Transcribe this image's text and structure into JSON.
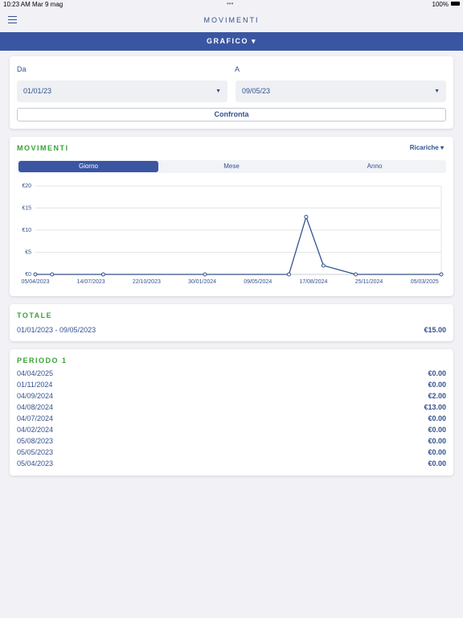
{
  "status_bar": {
    "time": "10:23 AM",
    "date": "Mar 9 mag",
    "battery": "100%"
  },
  "header": {
    "title": "MOVIMENTI",
    "view_selector": "GRAFICO"
  },
  "filter": {
    "from_label": "Da",
    "from_value": "01/01/23",
    "to_label": "A",
    "to_value": "09/05/23",
    "button": "Confronta"
  },
  "chart_card": {
    "title": "MOVIMENTI",
    "dropdown": "Ricariche",
    "tabs": [
      "Giorno",
      "Mese",
      "Anno"
    ]
  },
  "chart_data": {
    "type": "line",
    "color": "#33518f",
    "grid": true,
    "x": [
      "05/04/2023",
      "05/05/2023",
      "05/08/2023",
      "04/02/2024",
      "04/07/2024",
      "04/08/2024",
      "04/09/2024",
      "01/11/2024",
      "04/04/2025"
    ],
    "values": [
      0,
      0,
      0,
      0,
      0,
      13,
      2,
      0,
      0
    ],
    "xlim": [
      "05/04/2023",
      "04/04/2025"
    ],
    "xticks": [
      "05/04/2023",
      "14/07/2023",
      "22/10/2023",
      "30/01/2024",
      "09/05/2024",
      "17/08/2024",
      "25/11/2024",
      "05/03/2025"
    ],
    "ylim": [
      0,
      20
    ],
    "yticks": [
      {
        "value": 0,
        "label": "€0"
      },
      {
        "value": 5,
        "label": "€5"
      },
      {
        "value": 10,
        "label": "€10"
      },
      {
        "value": 15,
        "label": "€15"
      },
      {
        "value": 20,
        "label": "€20"
      }
    ]
  },
  "total": {
    "title": "TOTALE",
    "period": "01/01/2023 - 09/05/2023",
    "amount": "€15.00"
  },
  "period_1": {
    "title": "PERIODO 1",
    "rows": [
      [
        "04/04/2025",
        "€0.00"
      ],
      [
        "01/11/2024",
        "€0.00"
      ],
      [
        "04/09/2024",
        "€2.00"
      ],
      [
        "04/08/2024",
        "€13.00"
      ],
      [
        "04/07/2024",
        "€0.00"
      ],
      [
        "04/02/2024",
        "€0.00"
      ],
      [
        "05/08/2023",
        "€0.00"
      ],
      [
        "05/05/2023",
        "€0.00"
      ],
      [
        "05/04/2023",
        "€0.00"
      ]
    ]
  }
}
